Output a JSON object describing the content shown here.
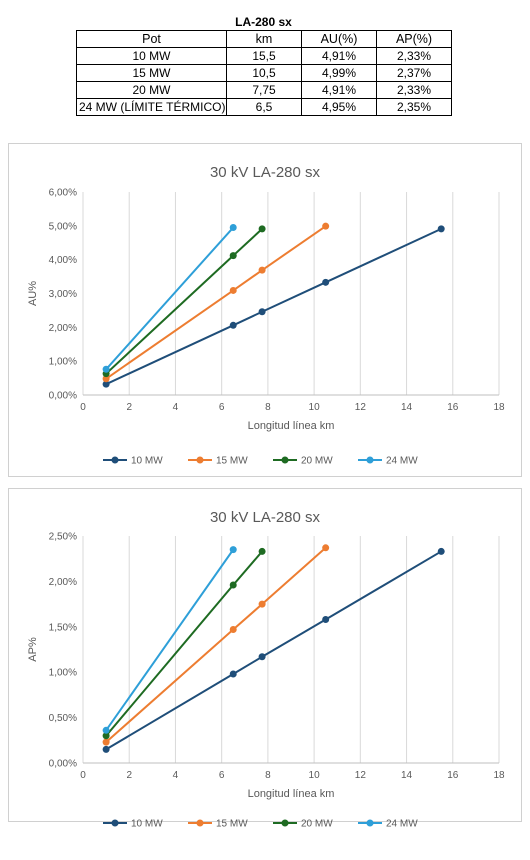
{
  "table": {
    "title": "LA-280 sx",
    "headers": [
      "Pot",
      "km",
      "AU(%)",
      "AP(%)"
    ],
    "rows": [
      [
        "10 MW",
        "15,5",
        "4,91%",
        "2,33%"
      ],
      [
        "15 MW",
        "10,5",
        "4,99%",
        "2,37%"
      ],
      [
        "20 MW",
        "7,75",
        "4,91%",
        "2,33%"
      ],
      [
        "24 MW (LÍMITE TÉRMICO)",
        "6,5",
        "4,95%",
        "2,35%"
      ]
    ]
  },
  "chart_data": [
    {
      "type": "line",
      "title": "30 kV LA-280 sx",
      "xlabel": "Longitud línea km",
      "ylabel": "AU%",
      "xlim": [
        0,
        18
      ],
      "x_ticks": [
        "0",
        "2",
        "4",
        "6",
        "8",
        "10",
        "12",
        "14",
        "16",
        "18"
      ],
      "ylim": [
        0,
        6
      ],
      "y_ticks": [
        "0,00%",
        "1,00%",
        "2,00%",
        "3,00%",
        "4,00%",
        "5,00%",
        "6,00%"
      ],
      "grid": "vertical",
      "legend": "bottom",
      "series": [
        {
          "name": "10 MW",
          "color": "#1f4e79",
          "x": [
            1,
            6.5,
            7.75,
            10.5,
            15.5
          ],
          "y": [
            0.32,
            2.06,
            2.46,
            3.33,
            4.91
          ]
        },
        {
          "name": "15 MW",
          "color": "#ed7d31",
          "x": [
            1,
            6.5,
            7.75,
            10.5
          ],
          "y": [
            0.48,
            3.09,
            3.69,
            4.99
          ]
        },
        {
          "name": "20 MW",
          "color": "#1e6b22",
          "x": [
            1,
            6.5,
            7.75
          ],
          "y": [
            0.63,
            4.12,
            4.91
          ]
        },
        {
          "name": "24 MW",
          "color": "#2e9fd8",
          "x": [
            1,
            6.5
          ],
          "y": [
            0.76,
            4.95
          ]
        }
      ]
    },
    {
      "type": "line",
      "title": "30 kV LA-280 sx",
      "xlabel": "Longitud línea km",
      "ylabel": "AP%",
      "xlim": [
        0,
        18
      ],
      "x_ticks": [
        "0",
        "2",
        "4",
        "6",
        "8",
        "10",
        "12",
        "14",
        "16",
        "18"
      ],
      "ylim": [
        0,
        2.5
      ],
      "y_ticks": [
        "0,00%",
        "0,50%",
        "1,00%",
        "1,50%",
        "2,00%",
        "2,50%"
      ],
      "grid": "vertical",
      "legend": "bottom",
      "series": [
        {
          "name": "10 MW",
          "color": "#1f4e79",
          "x": [
            1,
            6.5,
            7.75,
            10.5,
            15.5
          ],
          "y": [
            0.15,
            0.98,
            1.17,
            1.58,
            2.33
          ]
        },
        {
          "name": "15 MW",
          "color": "#ed7d31",
          "x": [
            1,
            6.5,
            7.75,
            10.5
          ],
          "y": [
            0.23,
            1.47,
            1.75,
            2.37
          ]
        },
        {
          "name": "20 MW",
          "color": "#1e6b22",
          "x": [
            1,
            6.5,
            7.75
          ],
          "y": [
            0.3,
            1.96,
            2.33
          ]
        },
        {
          "name": "24 MW",
          "color": "#2e9fd8",
          "x": [
            1,
            6.5
          ],
          "y": [
            0.36,
            2.35
          ]
        }
      ]
    }
  ]
}
